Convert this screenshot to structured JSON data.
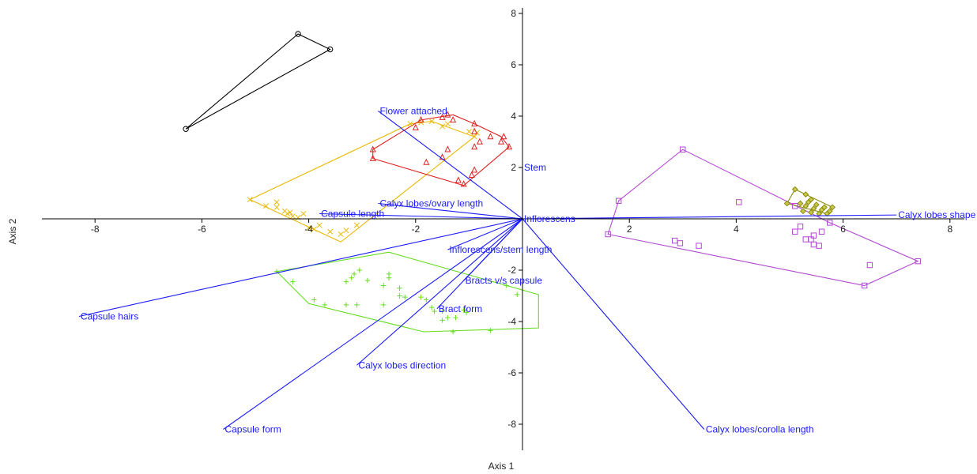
{
  "chart_data": {
    "type": "scatter",
    "subtype": "PCA biplot with convex hulls",
    "xlabel": "Axis 1",
    "ylabel": "Axis 2",
    "xlim": [
      -9,
      8
    ],
    "ylim": [
      -9,
      8
    ],
    "x_ticks": [
      -8,
      -6,
      -4,
      -2,
      2,
      4,
      6,
      8
    ],
    "y_ticks": [
      -8,
      -6,
      -4,
      -2,
      2,
      4,
      6,
      8
    ],
    "grid": false,
    "vector_color": "#1a1aff",
    "vectors": [
      {
        "label": "Flower attached",
        "x": -2.7,
        "y": 4.2
      },
      {
        "label": "Stem",
        "x": 0.0,
        "y": 2.0
      },
      {
        "label": "Calyx lobes/ovary length",
        "x": -2.7,
        "y": 0.6
      },
      {
        "label": "Capsule length",
        "x": -3.8,
        "y": 0.2
      },
      {
        "label": "Inflorescens",
        "x": 0.0,
        "y": 0.0
      },
      {
        "label": "Calyx lobes shape",
        "x": 7.0,
        "y": 0.15
      },
      {
        "label": "Inflorescens/stem length",
        "x": -1.4,
        "y": -1.2
      },
      {
        "label": "Bracts v/s capsule",
        "x": -1.1,
        "y": -2.4
      },
      {
        "label": "Bract form",
        "x": -1.6,
        "y": -3.5
      },
      {
        "label": "Capsule hairs",
        "x": -8.3,
        "y": -3.8
      },
      {
        "label": "Calyx lobes direction",
        "x": -3.1,
        "y": -5.7
      },
      {
        "label": "Capsule form",
        "x": -5.6,
        "y": -8.2
      },
      {
        "label": "Calyx lobes/corolla length",
        "x": 3.4,
        "y": -8.2
      }
    ],
    "groups": [
      {
        "color": "#000000",
        "marker": "circle",
        "points": [
          [
            -6.3,
            3.5
          ],
          [
            -4.2,
            7.2
          ],
          [
            -3.6,
            6.6
          ]
        ],
        "hull": [
          [
            -6.3,
            3.5
          ],
          [
            -4.2,
            7.2
          ],
          [
            -3.6,
            6.6
          ]
        ]
      },
      {
        "color": "#e8b800",
        "marker": "x",
        "points": [
          [
            -5.1,
            0.75
          ],
          [
            -4.8,
            0.5
          ],
          [
            -4.6,
            0.65
          ],
          [
            -4.6,
            0.45
          ],
          [
            -4.45,
            0.3
          ],
          [
            -4.4,
            0.2
          ],
          [
            -4.35,
            0.25
          ],
          [
            -4.3,
            0.1
          ],
          [
            -4.2,
            0.05
          ],
          [
            -4.1,
            0.2
          ],
          [
            -4.0,
            -0.35
          ],
          [
            -3.9,
            -0.4
          ],
          [
            -3.8,
            -0.25
          ],
          [
            -3.6,
            -0.5
          ],
          [
            -3.4,
            -0.6
          ],
          [
            -3.3,
            -0.45
          ],
          [
            -3.1,
            -0.25
          ],
          [
            -2.1,
            3.7
          ],
          [
            -1.9,
            3.75
          ],
          [
            -1.7,
            3.8
          ],
          [
            -1.5,
            3.6
          ],
          [
            -1.4,
            3.7
          ],
          [
            -1.0,
            3.4
          ],
          [
            -0.9,
            3.2
          ],
          [
            -0.85,
            3.35
          ]
        ],
        "hull": [
          [
            -5.1,
            0.75
          ],
          [
            -2.1,
            3.7
          ],
          [
            -1.7,
            3.8
          ],
          [
            -0.9,
            3.2
          ],
          [
            -3.4,
            -0.9
          ]
        ]
      },
      {
        "color": "#e02020",
        "marker": "triangle",
        "points": [
          [
            -2.8,
            2.7
          ],
          [
            -2.8,
            2.35
          ],
          [
            -2.0,
            3.55
          ],
          [
            -1.9,
            3.85
          ],
          [
            -1.5,
            2.4
          ],
          [
            -1.4,
            2.7
          ],
          [
            -1.8,
            2.2
          ],
          [
            -1.5,
            3.95
          ],
          [
            -1.2,
            1.5
          ],
          [
            -1.1,
            1.35
          ],
          [
            -0.95,
            1.7
          ],
          [
            -0.9,
            1.9
          ],
          [
            -0.9,
            2.8
          ],
          [
            -0.9,
            3.4
          ],
          [
            -0.8,
            3.0
          ],
          [
            -0.6,
            3.2
          ],
          [
            -0.4,
            3.0
          ],
          [
            -0.35,
            3.2
          ],
          [
            -0.25,
            2.8
          ],
          [
            -1.4,
            4.05
          ],
          [
            -1.3,
            3.85
          ],
          [
            -0.9,
            3.7
          ]
        ],
        "hull": [
          [
            -2.8,
            2.7
          ],
          [
            -1.9,
            3.85
          ],
          [
            -1.3,
            4.05
          ],
          [
            -0.9,
            3.7
          ],
          [
            -0.4,
            3.2
          ],
          [
            -0.25,
            2.8
          ],
          [
            -1.1,
            1.3
          ],
          [
            -2.8,
            2.35
          ]
        ]
      },
      {
        "color": "#66dd22",
        "marker": "plus",
        "points": [
          [
            -4.6,
            -2.05
          ],
          [
            -4.3,
            -2.45
          ],
          [
            -3.9,
            -3.15
          ],
          [
            -3.7,
            -3.35
          ],
          [
            -3.3,
            -3.35
          ],
          [
            -3.1,
            -3.35
          ],
          [
            -3.3,
            -2.45
          ],
          [
            -3.2,
            -2.3
          ],
          [
            -3.15,
            -2.15
          ],
          [
            -3.05,
            -2.0
          ],
          [
            -2.9,
            -2.4
          ],
          [
            -2.6,
            -2.6
          ],
          [
            -2.6,
            -3.35
          ],
          [
            -2.5,
            -2.15
          ],
          [
            -2.5,
            -2.3
          ],
          [
            -2.3,
            -2.7
          ],
          [
            -2.3,
            -3.0
          ],
          [
            -2.2,
            -3.05
          ],
          [
            -1.9,
            -3.05
          ],
          [
            -1.8,
            -3.15
          ],
          [
            -1.7,
            -3.45
          ],
          [
            -1.65,
            -3.6
          ],
          [
            -1.5,
            -3.6
          ],
          [
            -1.5,
            -3.95
          ],
          [
            -1.4,
            -3.85
          ],
          [
            -1.25,
            -3.85
          ],
          [
            -1.1,
            -3.55
          ],
          [
            -1.05,
            -3.65
          ],
          [
            -1.3,
            -4.4
          ],
          [
            -0.6,
            -4.35
          ],
          [
            -0.1,
            -2.95
          ],
          [
            -0.3,
            -2.6
          ]
        ],
        "hull": [
          [
            -4.6,
            -2.05
          ],
          [
            -2.5,
            -1.3
          ],
          [
            0.3,
            -2.95
          ],
          [
            0.3,
            -4.25
          ],
          [
            -1.85,
            -4.4
          ],
          [
            -4.0,
            -3.3
          ]
        ]
      },
      {
        "color": "#b048d0",
        "marker": "square",
        "points": [
          [
            1.6,
            -0.6
          ],
          [
            1.8,
            0.7
          ],
          [
            3.0,
            2.7
          ],
          [
            2.85,
            -0.85
          ],
          [
            2.95,
            -0.95
          ],
          [
            3.3,
            -1.05
          ],
          [
            4.05,
            0.65
          ],
          [
            5.1,
            -0.5
          ],
          [
            5.2,
            -0.3
          ],
          [
            5.3,
            -0.8
          ],
          [
            5.4,
            -0.8
          ],
          [
            5.45,
            -0.65
          ],
          [
            5.45,
            -1.0
          ],
          [
            5.55,
            -1.05
          ],
          [
            5.6,
            -0.5
          ],
          [
            5.75,
            -0.15
          ],
          [
            6.4,
            -2.6
          ],
          [
            6.5,
            -1.8
          ],
          [
            7.4,
            -1.65
          ],
          [
            5.1,
            0.5
          ]
        ],
        "hull": [
          [
            1.6,
            -0.6
          ],
          [
            1.8,
            0.7
          ],
          [
            3.0,
            2.7
          ],
          [
            5.75,
            -0.15
          ],
          [
            7.4,
            -1.65
          ],
          [
            6.4,
            -2.6
          ]
        ]
      },
      {
        "color": "#8a8a10",
        "marker": "diamond",
        "points": [
          [
            4.95,
            0.6
          ],
          [
            5.1,
            1.15
          ],
          [
            5.2,
            0.6
          ],
          [
            5.3,
            0.5
          ],
          [
            5.3,
            0.95
          ],
          [
            5.4,
            0.25
          ],
          [
            5.4,
            0.75
          ],
          [
            5.45,
            0.4
          ],
          [
            5.5,
            0.55
          ],
          [
            5.55,
            0.2
          ],
          [
            5.6,
            0.35
          ],
          [
            5.65,
            0.45
          ],
          [
            5.7,
            0.2
          ],
          [
            5.75,
            0.3
          ],
          [
            5.8,
            0.45
          ],
          [
            5.25,
            0.3
          ],
          [
            5.35,
            0.65
          ]
        ],
        "hull": [
          [
            4.95,
            0.6
          ],
          [
            5.1,
            1.15
          ],
          [
            5.8,
            0.45
          ],
          [
            5.7,
            0.2
          ]
        ]
      }
    ]
  }
}
